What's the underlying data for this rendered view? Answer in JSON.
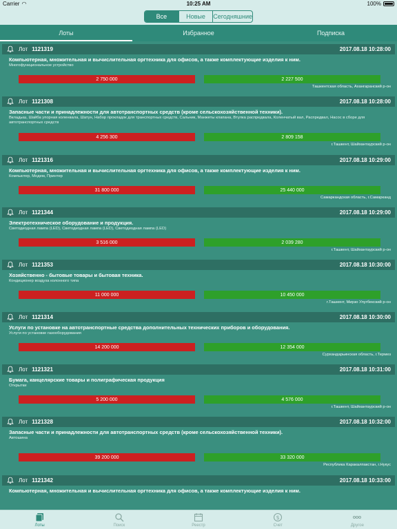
{
  "status_bar": {
    "carrier": "Carrier",
    "time": "10:25 AM",
    "battery": "100%"
  },
  "segments": [
    {
      "label": "Все",
      "active": true
    },
    {
      "label": "Новые",
      "active": false
    },
    {
      "label": "Сегодняшние",
      "active": false
    }
  ],
  "tabs": [
    {
      "label": "Лоты",
      "active": true
    },
    {
      "label": "Избранное",
      "active": false
    },
    {
      "label": "Подписка",
      "active": false
    }
  ],
  "lot_label": "Лот",
  "lots": [
    {
      "number": "1121319",
      "date": "2017.08.18 10:28:00",
      "title": "Компьютерная, множительная и вычислительная оргтехника для офисов, а также комплектующие изделия к ним.",
      "desc": "Многофункциональное устройство",
      "start_price": "2 750 000",
      "offer_price": "2 227 500",
      "region": "Ташкентская область, Ахангаранский р-он"
    },
    {
      "number": "1121308",
      "date": "2017.08.18 10:28:00",
      "title": "Запасные части и принадлежности для автотранспортных средств (кроме сельскохозяйственной техники).",
      "desc": "Вкладыш, Шайба упорная коленвала, Шатун, Набор прокладок для транспортных средств, Сальник, Манжеты клапана, Втулка распредвала, Коленчатый вал, Распредвал, Насос в сборе для автотранспортных средств",
      "start_price": "4 256 300",
      "offer_price": "2 809 158",
      "region": "г.Ташкент, Шайхантаурский р-он"
    },
    {
      "number": "1121316",
      "date": "2017.08.18 10:29:00",
      "title": "Компьютерная, множительная и вычислительная оргтехника для офисов, а также комплектующие изделия к ним.",
      "desc": "Компьютер, Модем, Принтер",
      "start_price": "31 800 000",
      "offer_price": "25 440 000",
      "region": "Самаркандская область, г.Самарканд"
    },
    {
      "number": "1121344",
      "date": "2017.08.18 10:29:00",
      "title": "Электротехническое оборудование и продукция.",
      "desc": "Светодиодная лампа (LED), Светодиодная лампа (LED), Светодиодная лампа (LED)",
      "start_price": "3 516 000",
      "offer_price": "2 039 280",
      "region": "г.Ташкент, Шайхантаурский р-он"
    },
    {
      "number": "1121353",
      "date": "2017.08.18 10:30:00",
      "title": "Хозяйственно - бытовые товары и бытовая техника.",
      "desc": "Кондиционер воздуха колонного типа",
      "start_price": "11 000 000",
      "offer_price": "10 450 000",
      "region": "г.Ташкент, Мирзо Улугбекский р-он"
    },
    {
      "number": "1121314",
      "date": "2017.08.18 10:30:00",
      "title": "Услуги по установке на автотранспортные средства дополнительных технических приборов и оборудования.",
      "desc": "Услуги по установке газооборудования",
      "start_price": "14 200 000",
      "offer_price": "12 354 000",
      "region": "Сурхандарьинская область, г.Термез"
    },
    {
      "number": "1121321",
      "date": "2017.08.18 10:31:00",
      "title": "Бумага, канцелярские товары и полиграфическая продукция",
      "desc": "Открытки",
      "start_price": "5 200 000",
      "offer_price": "4 576 000",
      "region": "г.Ташкент, Шайхантаурский р-он"
    },
    {
      "number": "1121328",
      "date": "2017.08.18 10:32:00",
      "title": "Запасные части и принадлежности для автотранспортных средств (кроме сельскохозяйственной техники).",
      "desc": "Автошина",
      "start_price": "39 200 000",
      "offer_price": "33 320 000",
      "region": "Республика Каракалпакстан, г.Нукус"
    },
    {
      "number": "1121342",
      "date": "2017.08.18 10:33:00",
      "title": "Компьютерная, множительная и вычислительная оргтехника для офисов, а также комплектующие изделия к ним.",
      "desc": "",
      "start_price": "",
      "offer_price": "",
      "region": ""
    }
  ],
  "bottom_tabs": [
    {
      "label": "Лоты",
      "icon": "lots-icon",
      "active": true
    },
    {
      "label": "Поиск",
      "icon": "search-icon",
      "active": false
    },
    {
      "label": "Реестр",
      "icon": "calendar-icon",
      "active": false
    },
    {
      "label": "Счет",
      "icon": "dollar-icon",
      "active": false
    },
    {
      "label": "Другое",
      "icon": "more-icon",
      "active": false
    }
  ],
  "colors": {
    "header": "#2e6f63",
    "card": "#3a8f7f",
    "red_bar": "#cc2020",
    "green_bar": "#2ea02a",
    "accent": "#2f8a7a"
  }
}
